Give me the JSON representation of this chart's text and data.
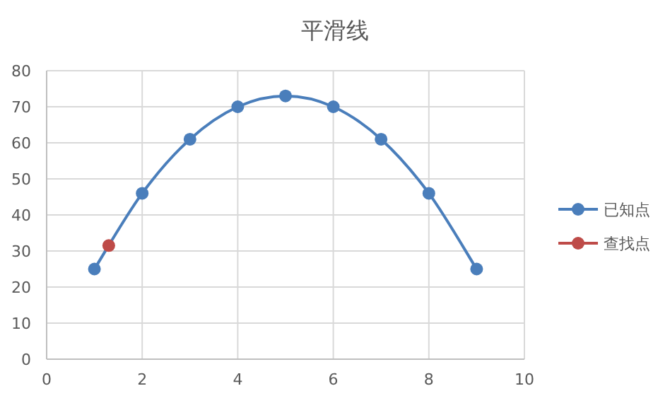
{
  "chart_data": {
    "type": "line",
    "title": "平滑线",
    "x": [
      1,
      2,
      3,
      4,
      5,
      6,
      7,
      8,
      9
    ],
    "series": [
      {
        "name": "已知点",
        "color": "#4a7ebb",
        "values": [
          25,
          46,
          61,
          70,
          73,
          70,
          61,
          46,
          25
        ]
      },
      {
        "name": "查找点",
        "color": "#be4b48",
        "x": [
          1.3
        ],
        "values": [
          31.5
        ]
      }
    ],
    "xlim": [
      0,
      10
    ],
    "xticks": [
      0,
      2,
      4,
      6,
      8,
      10
    ],
    "ylim": [
      0,
      80
    ],
    "yticks": [
      0,
      10,
      20,
      30,
      40,
      50,
      60,
      70,
      80
    ],
    "grid": true,
    "legend": "right",
    "marker": "circle",
    "line_style": "solid"
  }
}
